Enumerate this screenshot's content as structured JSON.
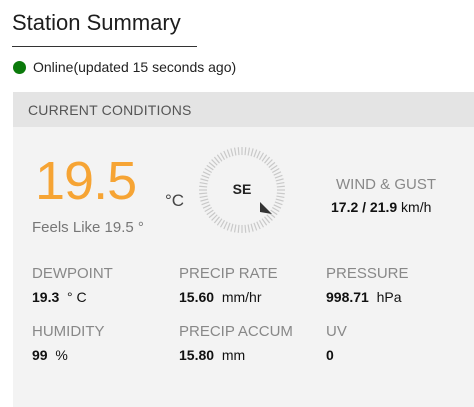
{
  "page": {
    "title": "Station Summary"
  },
  "status": {
    "text": "Online(updated 15 seconds ago)",
    "color": "#0b7a0b"
  },
  "current": {
    "header": "CURRENT CONDITIONS",
    "temperature": {
      "value": "19.5",
      "unit": "°C",
      "color": "#f6a434"
    },
    "feels_like": "Feels Like 19.5 °",
    "wind_direction": "SE",
    "wind_gust": {
      "label": "WIND & GUST",
      "wind": "17.2",
      "separator": " / ",
      "gust": "21.9",
      "unit": " km/h"
    },
    "dewpoint": {
      "label": "DEWPOINT",
      "value": "19.3",
      "unit": "° C"
    },
    "precip_rate": {
      "label": "PRECIP RATE",
      "value": "15.60",
      "unit": "mm/hr"
    },
    "pressure": {
      "label": "PRESSURE",
      "value": "998.71",
      "unit": "hPa"
    },
    "humidity": {
      "label": "HUMIDITY",
      "value": "99",
      "unit": "%"
    },
    "precip_accum": {
      "label": "PRECIP ACCUM",
      "value": "15.80",
      "unit": "mm"
    },
    "uv": {
      "label": "UV",
      "value": "0"
    }
  }
}
